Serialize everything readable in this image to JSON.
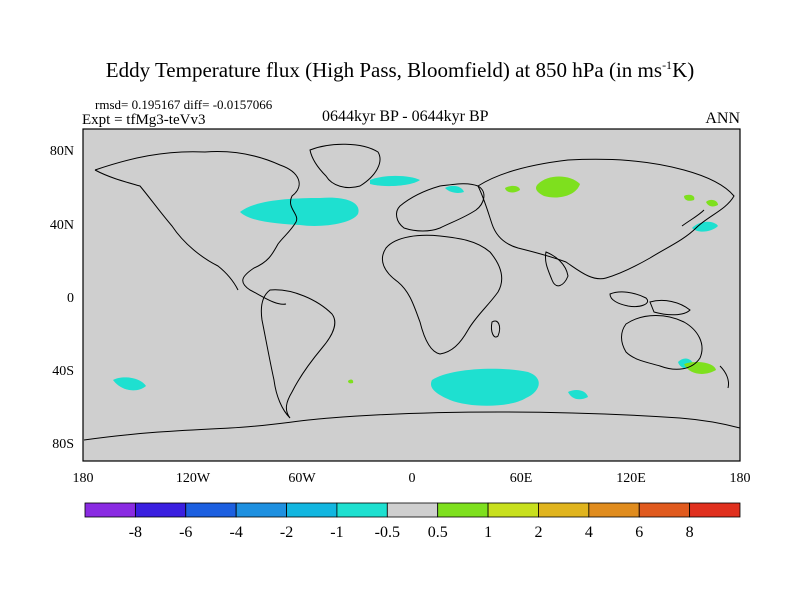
{
  "title": {
    "main": "Eddy Temperature flux (High Pass, Bloomfield) at 850 hPa (in ms",
    "sup": "-1",
    "end": "K)"
  },
  "stats": {
    "rmsd_line": "rmsd= 0.195167 diff= -0.0157066"
  },
  "expt": "Expt = tfMg3-teVv3",
  "center_label": "0644kyr BP - 0644kyr BP",
  "season": "ANN",
  "x_ticks": [
    "180",
    "120W",
    "60W",
    "0",
    "60E",
    "120E",
    "180"
  ],
  "y_ticks": [
    "80N",
    "40N",
    "0",
    "40S",
    "80S"
  ],
  "colorbar": {
    "colors": [
      "#8a2be2",
      "#3a1fe0",
      "#1c5fe0",
      "#1e90e0",
      "#12b6e0",
      "#1ee0d0",
      "#cfcfcf",
      "#7ee01e",
      "#c8e01e",
      "#e0b41e",
      "#e08c1e",
      "#e05a1e",
      "#e0301e"
    ],
    "labels": [
      "-8",
      "-6",
      "-4",
      "-2",
      "-1",
      "-0.5",
      "0.5",
      "1",
      "2",
      "4",
      "6",
      "8"
    ]
  },
  "colors": {
    "land_ocean": "#cfcfcf",
    "negative_flux": "#1ee0d0",
    "positive_flux": "#7ee01e"
  }
}
